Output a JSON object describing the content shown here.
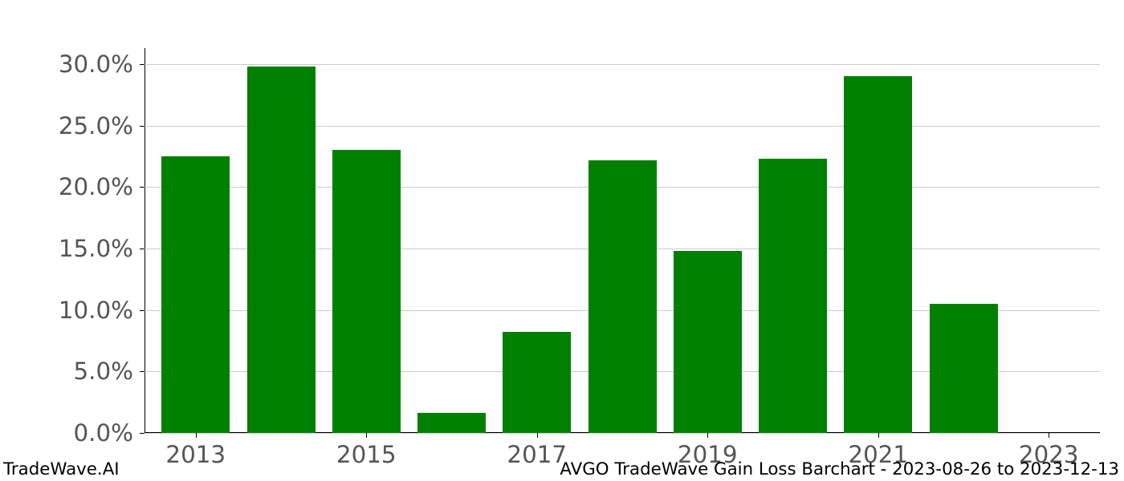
{
  "chart": {
    "type": "bar",
    "background_color": "#ffffff",
    "grid_color": "#cccccc",
    "axis_color": "#000000",
    "bar_color": "#008000",
    "tick_label_color": "#555555",
    "tick_label_fontsize_pt": 22,
    "footer_fontsize_pt": 16,
    "footer_color": "#000000",
    "x": {
      "categories": [
        2013,
        2014,
        2015,
        2016,
        2017,
        2018,
        2019,
        2020,
        2021,
        2022,
        2023
      ],
      "tick_labels": [
        "2013",
        "2015",
        "2017",
        "2019",
        "2021",
        "2023"
      ],
      "tick_positions": [
        2013,
        2015,
        2017,
        2019,
        2021,
        2023
      ],
      "min": 2012.4,
      "max": 2023.6,
      "bar_width": 0.8
    },
    "y": {
      "min": 0.0,
      "max": 31.3,
      "tick_values": [
        0.0,
        5.0,
        10.0,
        15.0,
        20.0,
        25.0,
        30.0
      ],
      "tick_labels": [
        "0.0%",
        "5.0%",
        "10.0%",
        "15.0%",
        "20.0%",
        "25.0%",
        "30.0%"
      ],
      "grid": true
    },
    "values": [
      22.5,
      29.8,
      23.0,
      1.6,
      8.2,
      22.2,
      14.8,
      22.3,
      29.0,
      10.5,
      0.0
    ]
  },
  "footer": {
    "left": "TradeWave.AI",
    "right": "AVGO TradeWave Gain Loss Barchart - 2023-08-26 to 2023-12-13"
  }
}
